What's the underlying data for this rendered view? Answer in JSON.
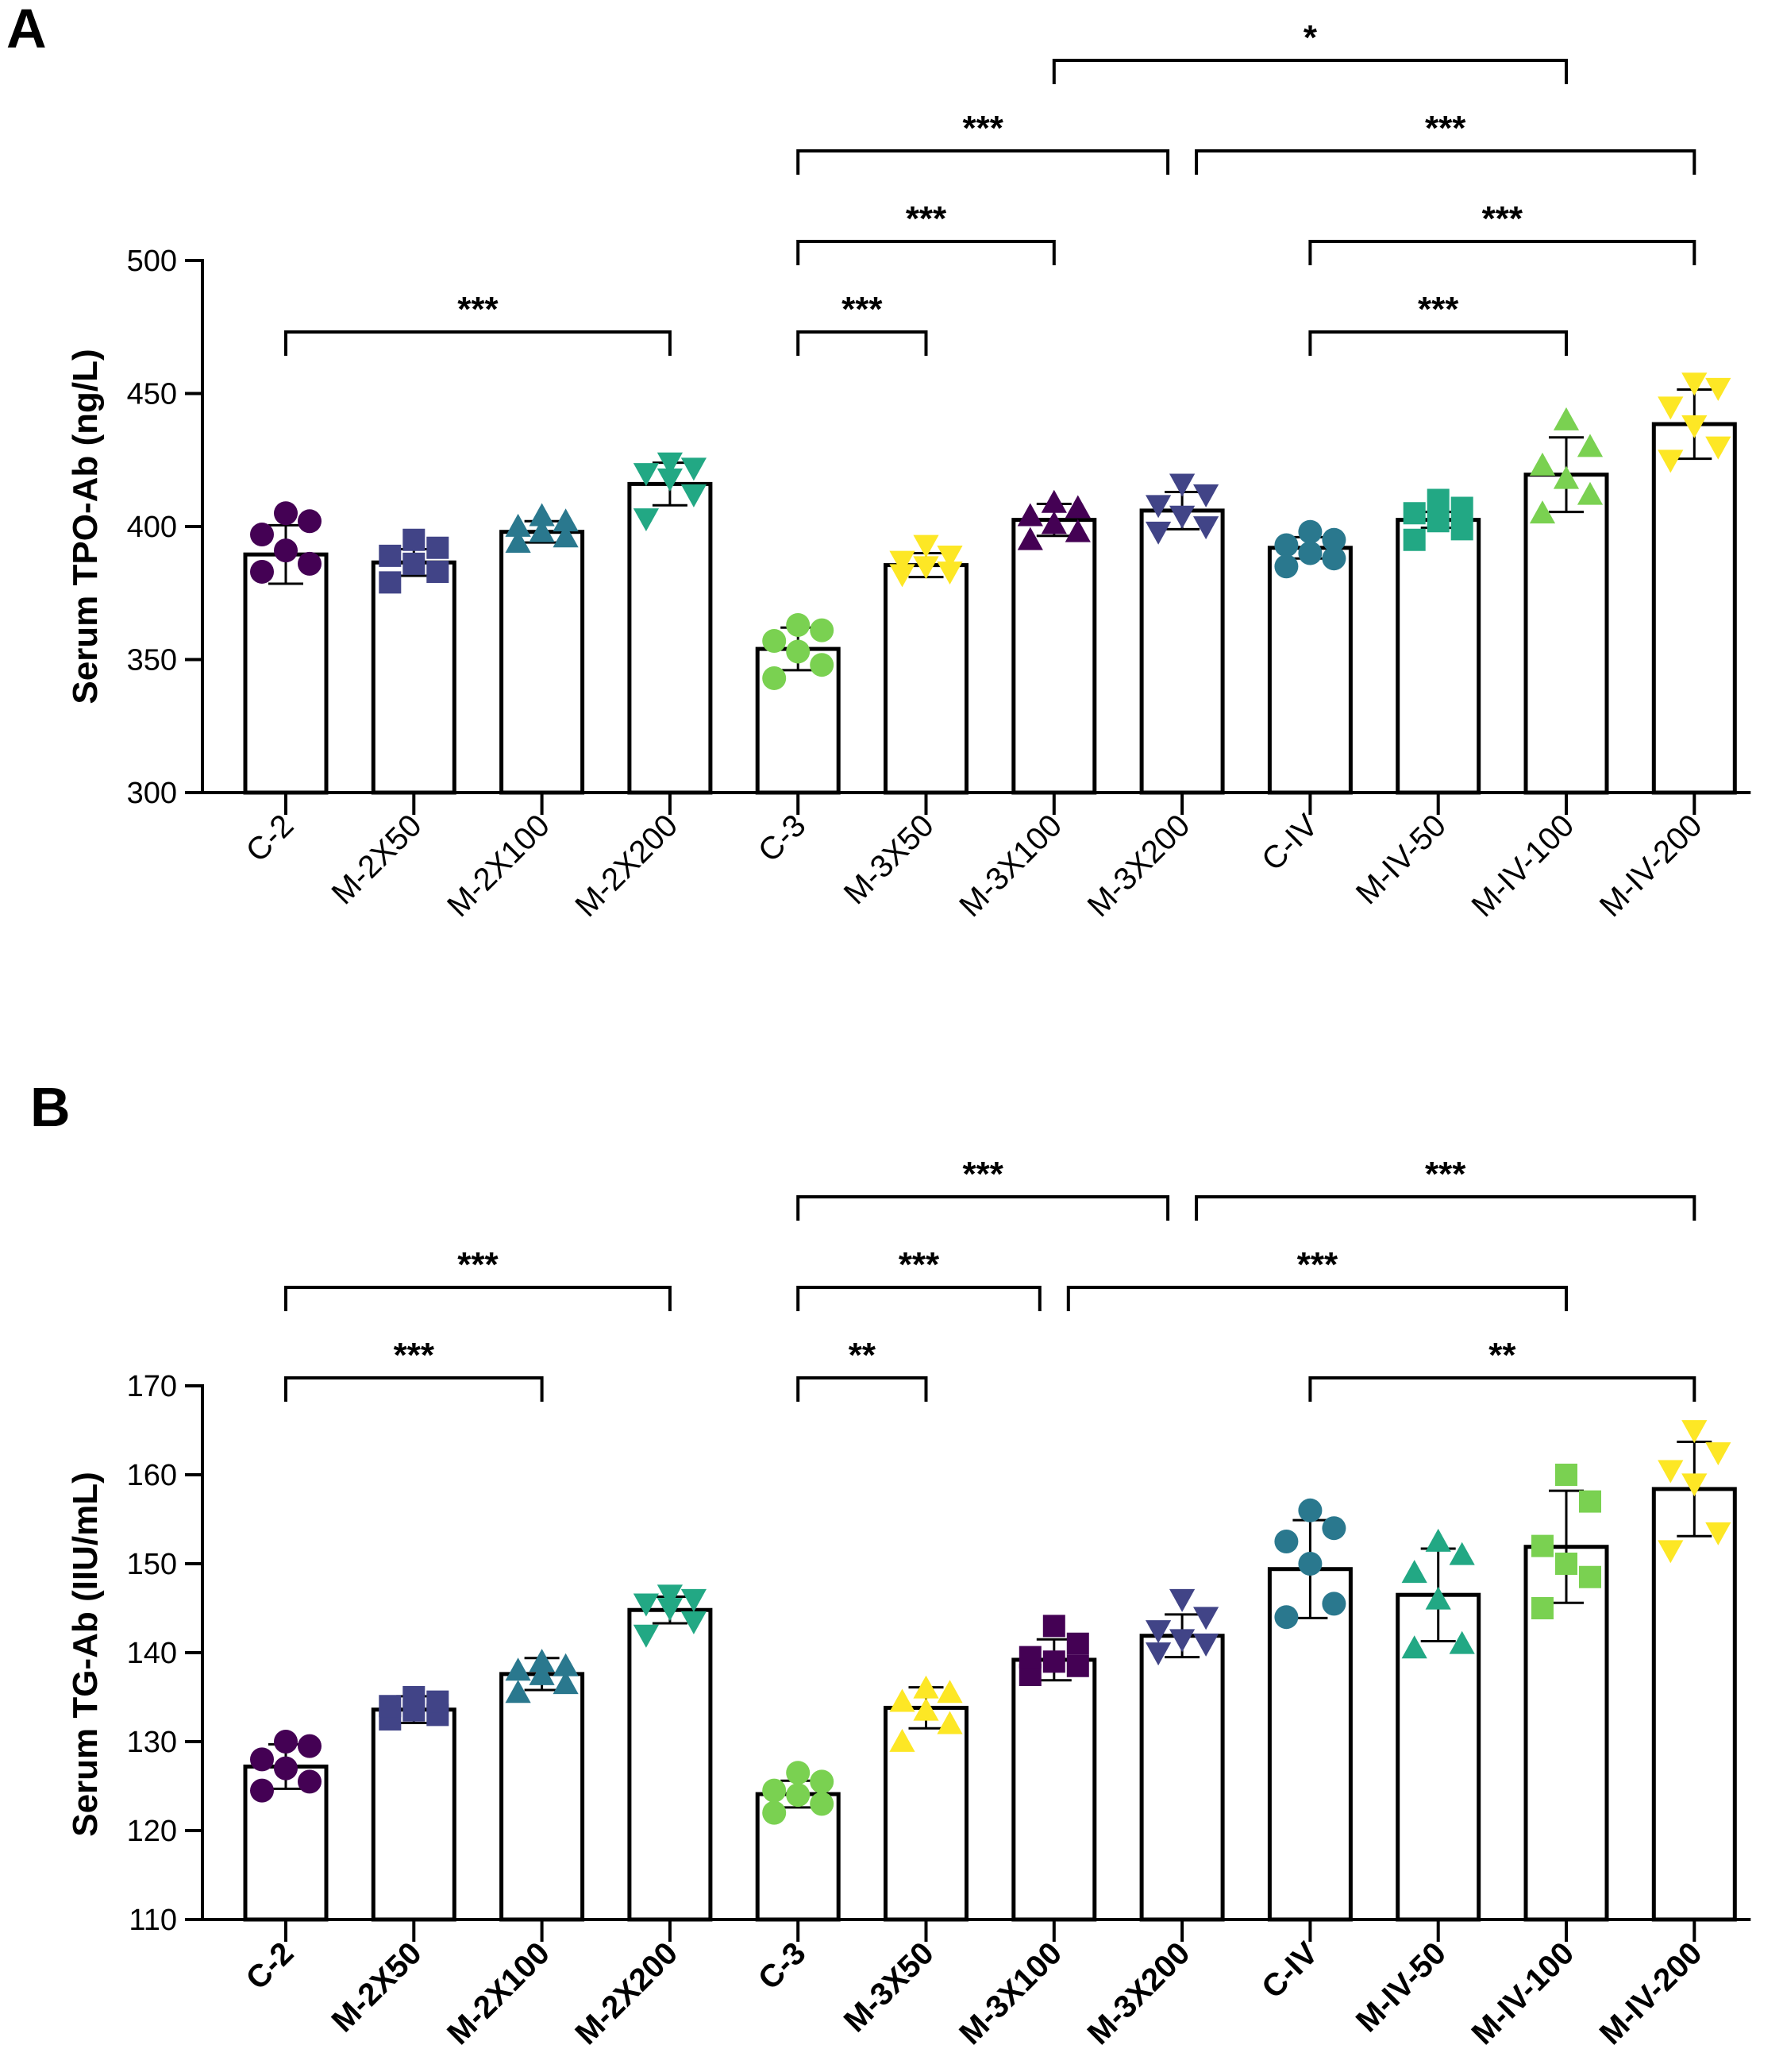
{
  "chart_data": [
    {
      "panel": "A",
      "type": "bar",
      "ylabel": "Serum TPO-Ab (ng/L)",
      "xlabel": "",
      "ylim": [
        300,
        500
      ],
      "yticks": [
        300,
        350,
        400,
        450,
        500
      ],
      "xtick_bold": false,
      "categories": [
        "C-2",
        "M-2X50",
        "M-2X100",
        "M-2X200",
        "C-3",
        "M-3X50",
        "M-3X100",
        "M-3X200",
        "C-IV",
        "M-IV-50",
        "M-IV-100",
        "M-IV-200"
      ],
      "colors": [
        "#440154",
        "#414487",
        "#2a788e",
        "#22a884",
        "#7ad151",
        "#fde725",
        "#440154",
        "#414487",
        "#2a788e",
        "#22a884",
        "#7ad151",
        "#fde725"
      ],
      "markers": [
        "circle",
        "square",
        "triangle-up",
        "triangle-down",
        "circle",
        "triangle-down",
        "triangle-up",
        "triangle-down",
        "circle",
        "square",
        "triangle-up",
        "triangle-down"
      ],
      "values": [
        389.5,
        386.5,
        398,
        416,
        354,
        385.5,
        402.5,
        406,
        392,
        402.5,
        419.5,
        438.5
      ],
      "errors": [
        11,
        5,
        4,
        8,
        8,
        4.5,
        6,
        7,
        4,
        3,
        14,
        13
      ],
      "points": [
        [
          383,
          386,
          391,
          397,
          402,
          405
        ],
        [
          379,
          383,
          386,
          389,
          392,
          395
        ],
        [
          394,
          396,
          398,
          400,
          402,
          404
        ],
        [
          403,
          412,
          418,
          420,
          422,
          424
        ],
        [
          343,
          348,
          353,
          357,
          361,
          363
        ],
        [
          382,
          383,
          385,
          387,
          389,
          393
        ],
        [
          395,
          398,
          401,
          404,
          407,
          409
        ],
        [
          398,
          400,
          404,
          408,
          412,
          416
        ],
        [
          385,
          388,
          390,
          393,
          395,
          398
        ],
        [
          395,
          399,
          402,
          405,
          407,
          410
        ],
        [
          405,
          412,
          418,
          423,
          430,
          440
        ],
        [
          425,
          430,
          438,
          445,
          452,
          454
        ]
      ],
      "comparisons": [
        {
          "from": 0,
          "to": 3,
          "level": 1,
          "label": "***"
        },
        {
          "from": 4,
          "to": 5,
          "level": 1,
          "label": "***"
        },
        {
          "from": 8,
          "to": 10,
          "level": 1,
          "label": "***"
        },
        {
          "from": 4,
          "to": 6,
          "level": 2,
          "label": "***"
        },
        {
          "from": 8,
          "to": 11,
          "level": 2,
          "label": "***"
        },
        {
          "from": 4,
          "to": 7,
          "level": 3,
          "label": "***"
        },
        {
          "from": 7,
          "to": 11,
          "level": 3,
          "label": "***"
        },
        {
          "from": 6,
          "to": 10,
          "level": 4,
          "label": "*"
        }
      ]
    },
    {
      "panel": "B",
      "type": "bar",
      "ylabel": "Serum TG-Ab (IIU/mL)",
      "xlabel": "",
      "ylim": [
        110,
        170
      ],
      "yticks": [
        110,
        120,
        130,
        140,
        150,
        160,
        170
      ],
      "xtick_bold": true,
      "categories": [
        "C-2",
        "M-2X50",
        "M-2X100",
        "M-2X200",
        "C-3",
        "M-3X50",
        "M-3X100",
        "M-3X200",
        "C-IV",
        "M-IV-50",
        "M-IV-100",
        "M-IV-200"
      ],
      "colors": [
        "#440154",
        "#414487",
        "#2a788e",
        "#22a884",
        "#7ad151",
        "#fde725",
        "#440154",
        "#414487",
        "#2a788e",
        "#22a884",
        "#7ad151",
        "#fde725"
      ],
      "markers": [
        "circle",
        "square",
        "triangle-up",
        "triangle-down",
        "circle",
        "triangle-up",
        "square",
        "triangle-down",
        "circle",
        "triangle-up",
        "square",
        "triangle-down"
      ],
      "values": [
        127.2,
        133.6,
        137.6,
        144.8,
        124.1,
        133.8,
        139.2,
        141.9,
        149.4,
        146.5,
        151.9,
        158.4
      ],
      "errors": [
        2.5,
        1.5,
        1.8,
        1.5,
        1.5,
        2.3,
        2.3,
        2.4,
        5.5,
        5.2,
        6.3,
        5.3
      ],
      "points": [
        [
          124.5,
          125.5,
          127,
          128,
          129.5,
          130
        ],
        [
          132.5,
          133,
          133.5,
          134,
          134.5,
          135
        ],
        [
          135.5,
          136.5,
          137.5,
          138,
          138.5,
          139
        ],
        [
          142,
          143.5,
          145,
          145.5,
          146,
          146.5
        ],
        [
          122,
          123,
          124,
          124.5,
          125.5,
          126.5
        ],
        [
          130,
          132,
          133.5,
          134.5,
          135.5,
          136
        ],
        [
          137.5,
          138.5,
          139,
          139.5,
          141,
          143
        ],
        [
          140,
          141,
          141.5,
          142.5,
          144,
          146
        ],
        [
          144,
          145.5,
          150,
          152.5,
          154,
          156
        ],
        [
          140.5,
          141,
          146,
          149,
          151,
          152.5
        ],
        [
          145,
          148.5,
          150,
          152,
          157,
          160
        ],
        [
          151.5,
          153.5,
          159,
          160.5,
          162.5,
          165
        ]
      ],
      "comparisons": [
        {
          "from": 0,
          "to": 2,
          "level": 1,
          "label": "***"
        },
        {
          "from": 4,
          "to": 5,
          "level": 1,
          "label": "**"
        },
        {
          "from": 8,
          "to": 11,
          "level": 1,
          "label": "**"
        },
        {
          "from": 0,
          "to": 3,
          "level": 2,
          "label": "***"
        },
        {
          "from": 4,
          "to": 6,
          "level": 2,
          "label": "***"
        },
        {
          "from": 6,
          "to": 10,
          "level": 2,
          "label": "***"
        },
        {
          "from": 4,
          "to": 7,
          "level": 3,
          "label": "***"
        },
        {
          "from": 7,
          "to": 11,
          "level": 3,
          "label": "***"
        }
      ]
    }
  ]
}
